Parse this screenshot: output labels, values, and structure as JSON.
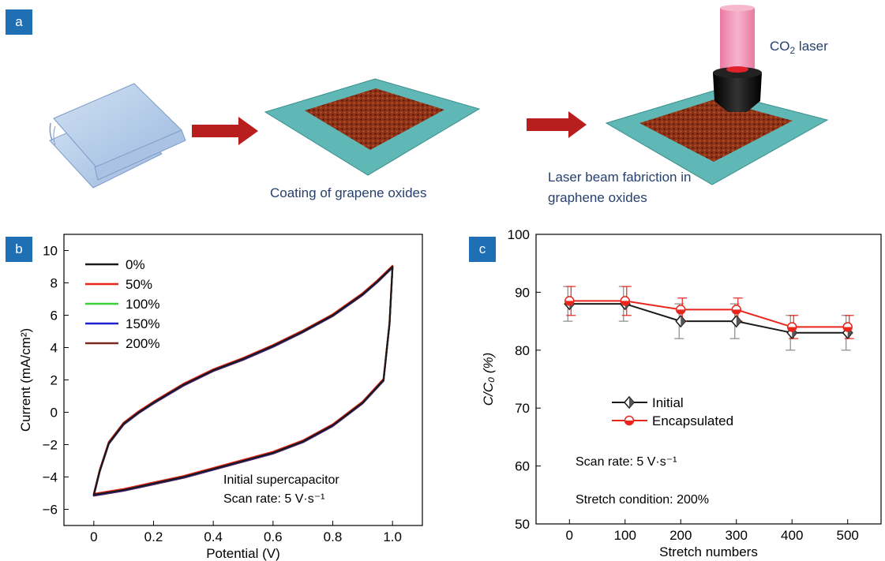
{
  "panels": {
    "a": {
      "tag": "a",
      "caption_coating": "Coating of grapene oxides",
      "caption_laser_line1": "Laser beam fabriction in",
      "caption_laser_line2": "graphene oxides",
      "laser_label": "CO",
      "laser_label_sub": "2",
      "laser_label_rest": " laser"
    },
    "b": {
      "tag": "b"
    },
    "c": {
      "tag": "c"
    }
  },
  "colors": {
    "tag_bg": "#1f6fb5",
    "caption": "#27406d",
    "arrow": "#b81e1e",
    "substrate": "#5fb8b5",
    "film": "#9b3a1c",
    "laser_beam": "#f29ab8",
    "black": "#1a1a1a",
    "red": "#e8261c",
    "green": "#3ad13a",
    "blue": "#2020d0",
    "brown": "#7a2a20"
  },
  "chart_data": [
    {
      "type": "line",
      "title": "",
      "xlabel": "Potential (V)",
      "ylabel": "Current (mA/cm²)",
      "xlim": [
        -0.1,
        1.1
      ],
      "ylim": [
        -7,
        11
      ],
      "xticks": [
        "0",
        "0.2",
        "0.4",
        "0.6",
        "0.8",
        "1.0"
      ],
      "yticks": [
        "−6",
        "−4",
        "−2",
        "0",
        "2",
        "4",
        "6",
        "8",
        "10"
      ],
      "legend": "top-left",
      "series": [
        {
          "name": "0%",
          "color": "#1a1a1a"
        },
        {
          "name": "50%",
          "color": "#e8261c"
        },
        {
          "name": "100%",
          "color": "#3ad13a"
        },
        {
          "name": "150%",
          "color": "#2020d0"
        },
        {
          "name": "200%",
          "color": "#7a2a20"
        }
      ],
      "upper_branch": {
        "x": [
          0,
          0.02,
          0.05,
          0.1,
          0.15,
          0.2,
          0.3,
          0.4,
          0.5,
          0.6,
          0.7,
          0.8,
          0.9,
          0.95,
          1.0
        ],
        "y": [
          -5.1,
          -3.6,
          -1.9,
          -0.7,
          0.0,
          0.6,
          1.7,
          2.6,
          3.3,
          4.1,
          5.0,
          6.0,
          7.3,
          8.1,
          9.0
        ]
      },
      "lower_branch": {
        "x": [
          1.0,
          0.99,
          0.97,
          0.9,
          0.8,
          0.7,
          0.6,
          0.5,
          0.4,
          0.3,
          0.2,
          0.1,
          0.0
        ],
        "y": [
          9.0,
          5.5,
          2.0,
          0.6,
          -0.8,
          -1.8,
          -2.5,
          -3.0,
          -3.5,
          -4.0,
          -4.4,
          -4.8,
          -5.1
        ]
      },
      "annotations": [
        "Initial supercapacitor",
        "Scan rate: 5 V·s⁻¹"
      ]
    },
    {
      "type": "line",
      "title": "",
      "xlabel": "Stretch numbers",
      "ylabel": "C/C₀ (%)",
      "xlim": [
        -60,
        560
      ],
      "ylim": [
        50,
        100
      ],
      "x": [
        0,
        100,
        200,
        300,
        400,
        500
      ],
      "xticks": [
        "0",
        "100",
        "200",
        "300",
        "400",
        "500"
      ],
      "yticks": [
        "50",
        "60",
        "70",
        "80",
        "90",
        "100"
      ],
      "legend": "middle-left",
      "series": [
        {
          "name": "Initial",
          "color": "#1a1a1a",
          "marker": "diamond",
          "values": [
            88,
            88,
            85,
            85,
            83,
            83
          ],
          "error": [
            3,
            3,
            3,
            3,
            3,
            3
          ]
        },
        {
          "name": "Encapsulated",
          "color": "#e8261c",
          "marker": "circle",
          "values": [
            88.5,
            88.5,
            87,
            87,
            84,
            84
          ],
          "error": [
            2.5,
            2.5,
            2,
            2,
            2,
            2
          ]
        }
      ],
      "annotations": [
        "Scan rate: 5 V·s⁻¹",
        "Stretch condition: 200%"
      ]
    }
  ]
}
